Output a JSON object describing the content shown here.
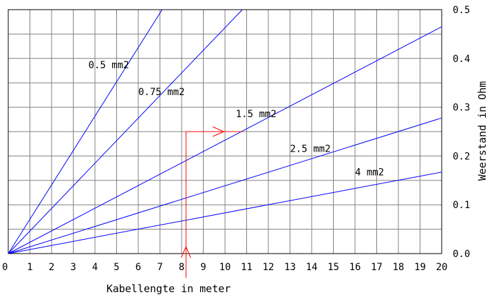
{
  "chart_data": {
    "type": "line",
    "xlabel": "Kabellengte in meter",
    "ylabel": "Weerstand in Ohm",
    "xlim": [
      0,
      20
    ],
    "ylim": [
      0,
      0.5
    ],
    "x_ticks": [
      "0",
      "1",
      "2",
      "3",
      "4",
      "5",
      "6",
      "7",
      "8",
      "9",
      "10",
      "11",
      "12",
      "13",
      "14",
      "15",
      "16",
      "17",
      "18",
      "19",
      "20"
    ],
    "y_ticks": [
      "0.0",
      "0.1",
      "0.2",
      "0.3",
      "0.4",
      "0.5"
    ],
    "grid": true,
    "y_axis_side": "right",
    "series": [
      {
        "name": "0.5 mm2",
        "x": [
          0,
          7.1
        ],
        "y": [
          0,
          0.5
        ]
      },
      {
        "name": "0.75 mm2",
        "x": [
          0,
          10.8
        ],
        "y": [
          0,
          0.5
        ]
      },
      {
        "name": "1.5 mm2",
        "x": [
          0,
          20
        ],
        "y": [
          0,
          0.465
        ]
      },
      {
        "name": "2.5 mm2",
        "x": [
          0,
          20
        ],
        "y": [
          0,
          0.278
        ]
      },
      {
        "name": "4 mm2",
        "x": [
          0,
          20
        ],
        "y": [
          0,
          0.167
        ]
      }
    ],
    "series_label_positions": [
      {
        "x": 3.7,
        "y": 0.38
      },
      {
        "x": 6.0,
        "y": 0.325
      },
      {
        "x": 10.5,
        "y": 0.28
      },
      {
        "x": 13.0,
        "y": 0.208
      },
      {
        "x": 16.0,
        "y": 0.16
      }
    ],
    "annotation": {
      "color": "#ff0000",
      "path": [
        [
          8.2,
          -0.05
        ],
        [
          8.2,
          0.25
        ],
        [
          10.8,
          0.25
        ]
      ]
    },
    "colors": {
      "series": "#0000ff",
      "grid": "#808080",
      "annotation": "#ff0000"
    }
  }
}
